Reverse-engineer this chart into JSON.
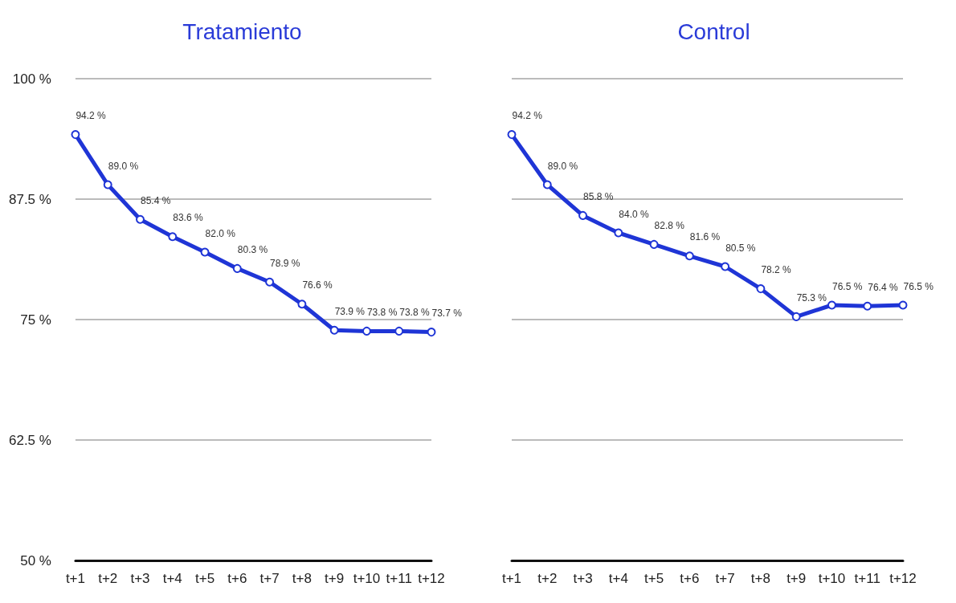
{
  "chart_data": [
    {
      "type": "line",
      "title": "Tratamiento",
      "categories": [
        "t+1",
        "t+2",
        "t+3",
        "t+4",
        "t+5",
        "t+6",
        "t+7",
        "t+8",
        "t+9",
        "t+10",
        "t+11",
        "t+12"
      ],
      "series": [
        {
          "color": "#1f35d6",
          "values": [
            94.2,
            89.0,
            85.4,
            83.6,
            82.0,
            80.3,
            78.9,
            76.6,
            73.9,
            73.8,
            73.8,
            73.7
          ],
          "value_labels": [
            "94.2 %",
            "89.0 %",
            "85.4 %",
            "83.6 %",
            "82.0 %",
            "80.3 %",
            "78.9 %",
            "76.6 %",
            "73.9 %",
            "73.8 %",
            "73.8 %",
            "73.7 %"
          ]
        }
      ],
      "ylim": [
        50,
        100
      ],
      "yticks": [
        {
          "value": 50,
          "label": "50 %"
        },
        {
          "value": 62.5,
          "label": "62.5 %"
        },
        {
          "value": 75,
          "label": "75 %"
        },
        {
          "value": 87.5,
          "label": "87.5 %"
        },
        {
          "value": 100,
          "label": "100 %"
        }
      ],
      "grid": "y",
      "marker": "circle",
      "line_style": "solid"
    },
    {
      "type": "line",
      "title": "Control",
      "categories": [
        "t+1",
        "t+2",
        "t+3",
        "t+4",
        "t+5",
        "t+6",
        "t+7",
        "t+8",
        "t+9",
        "t+10",
        "t+11",
        "t+12"
      ],
      "series": [
        {
          "color": "#1f35d6",
          "values": [
            94.2,
            89.0,
            85.8,
            84.0,
            82.8,
            81.6,
            80.5,
            78.2,
            75.3,
            76.5,
            76.4,
            76.5
          ],
          "value_labels": [
            "94.2 %",
            "89.0 %",
            "85.8 %",
            "84.0 %",
            "82.8 %",
            "81.6 %",
            "80.5 %",
            "78.2 %",
            "75.3 %",
            "76.5 %",
            "76.4 %",
            "76.5 %"
          ]
        }
      ],
      "ylim": [
        50,
        100
      ],
      "yticks": [
        50,
        62.5,
        75,
        87.5,
        100
      ],
      "grid": "y",
      "marker": "circle",
      "line_style": "solid",
      "tick_labels": "x"
    }
  ]
}
